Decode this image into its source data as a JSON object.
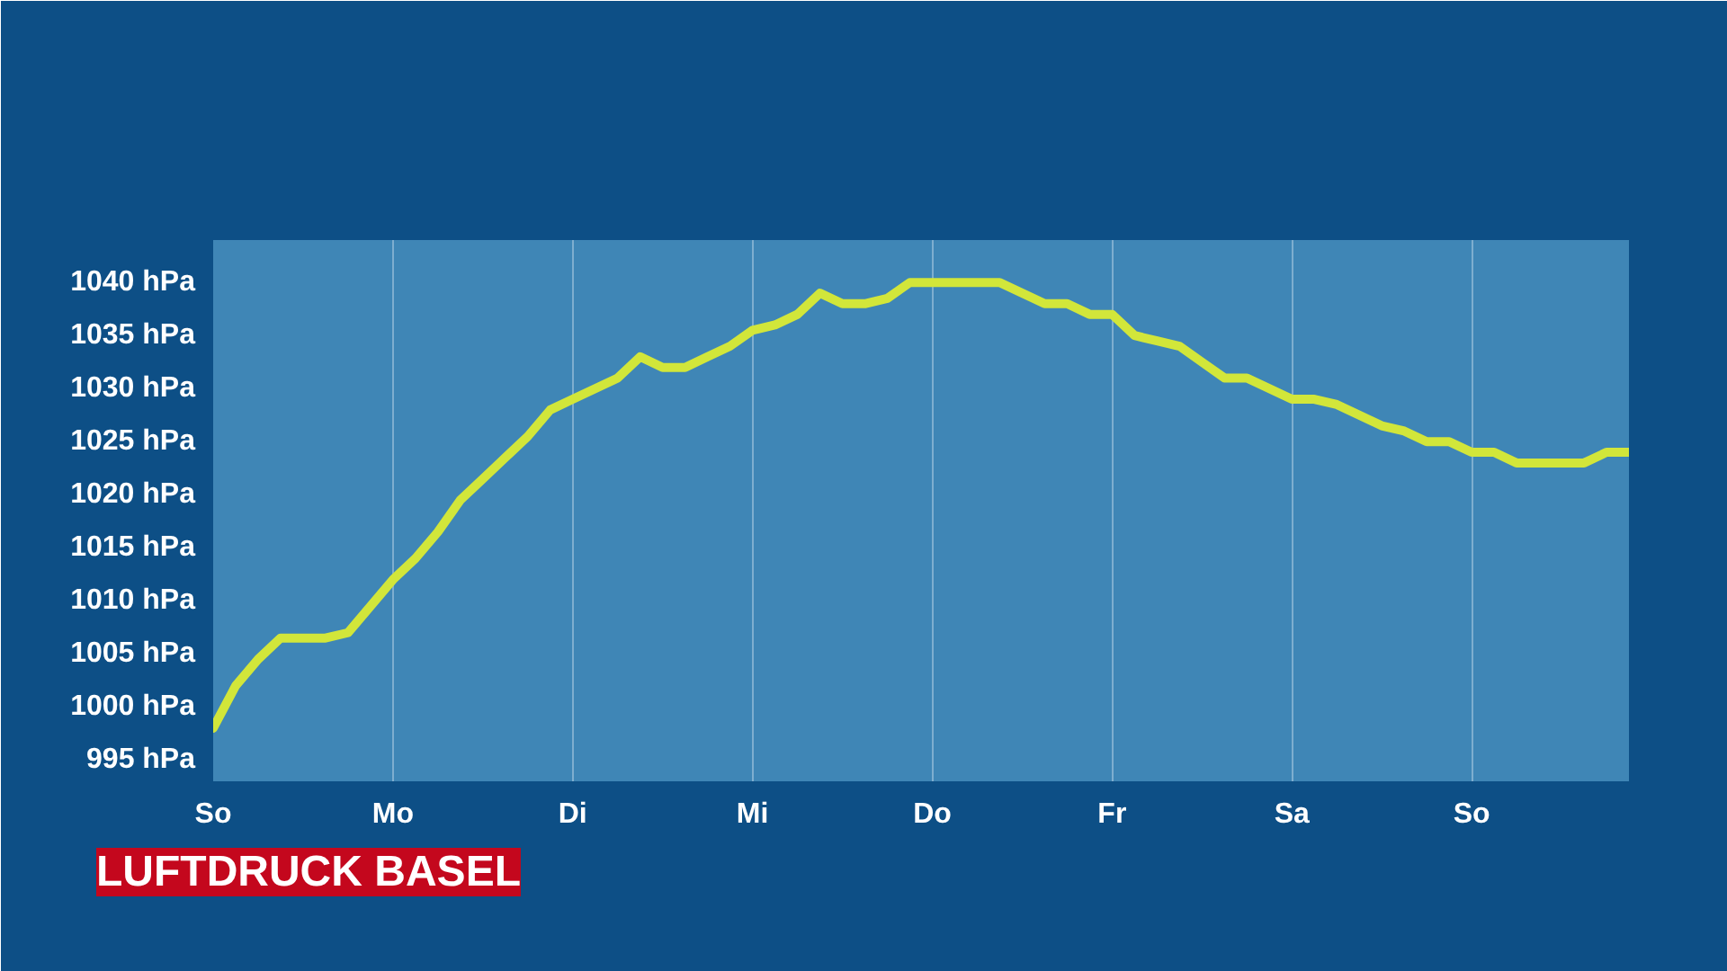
{
  "chart_data": {
    "type": "line",
    "title": "LUFTDRUCK BASEL",
    "categories": [
      "So",
      null,
      null,
      null,
      null,
      null,
      null,
      null,
      "Mo",
      null,
      null,
      null,
      null,
      null,
      null,
      null,
      "Di",
      null,
      null,
      null,
      null,
      null,
      null,
      null,
      "Mi",
      null,
      null,
      null,
      null,
      null,
      null,
      null,
      "Do",
      null,
      null,
      null,
      null,
      null,
      null,
      null,
      "Fr",
      null,
      null,
      null,
      null,
      null,
      null,
      null,
      "Sa",
      null,
      null,
      null,
      null,
      null,
      null,
      null,
      "So",
      null,
      null,
      null,
      null,
      null,
      null,
      null
    ],
    "ylim": [
      993,
      1044
    ],
    "yticks": [
      {
        "value": 995,
        "label": "995 hPa"
      },
      {
        "value": 1000,
        "label": "1000 hPa"
      },
      {
        "value": 1005,
        "label": "1005 hPa"
      },
      {
        "value": 1010,
        "label": "1010 hPa"
      },
      {
        "value": 1015,
        "label": "1015 hPa"
      },
      {
        "value": 1020,
        "label": "1020 hPa"
      },
      {
        "value": 1025,
        "label": "1025 hPa"
      },
      {
        "value": 1030,
        "label": "1030 hPa"
      },
      {
        "value": 1035,
        "label": "1035 hPa"
      },
      {
        "value": 1040,
        "label": "1040 hPa"
      }
    ],
    "grid": "x",
    "marker": "none",
    "line_style": "solid",
    "series": [
      {
        "color": "#d2e63a",
        "values": [
          998,
          1002,
          1004.5,
          1006.5,
          1006.5,
          1006.5,
          1007,
          1009.5,
          1012,
          1014,
          1016.5,
          1019.5,
          1021.5,
          1023.5,
          1025.5,
          1028,
          1029,
          1030,
          1031,
          1033,
          1032,
          1032,
          1033,
          1034,
          1035.5,
          1036,
          1037,
          1039,
          1038,
          1038,
          1038.5,
          1040,
          1040,
          1040,
          1040,
          1040,
          1039,
          1038,
          1038,
          1037,
          1037,
          1035,
          1034.5,
          1034,
          1032.5,
          1031,
          1031,
          1030,
          1029,
          1029,
          1028.5,
          1027.5,
          1026.5,
          1026,
          1025,
          1025,
          1024,
          1024,
          1023,
          1023,
          1023,
          1023,
          1024,
          1024
        ]
      }
    ]
  }
}
